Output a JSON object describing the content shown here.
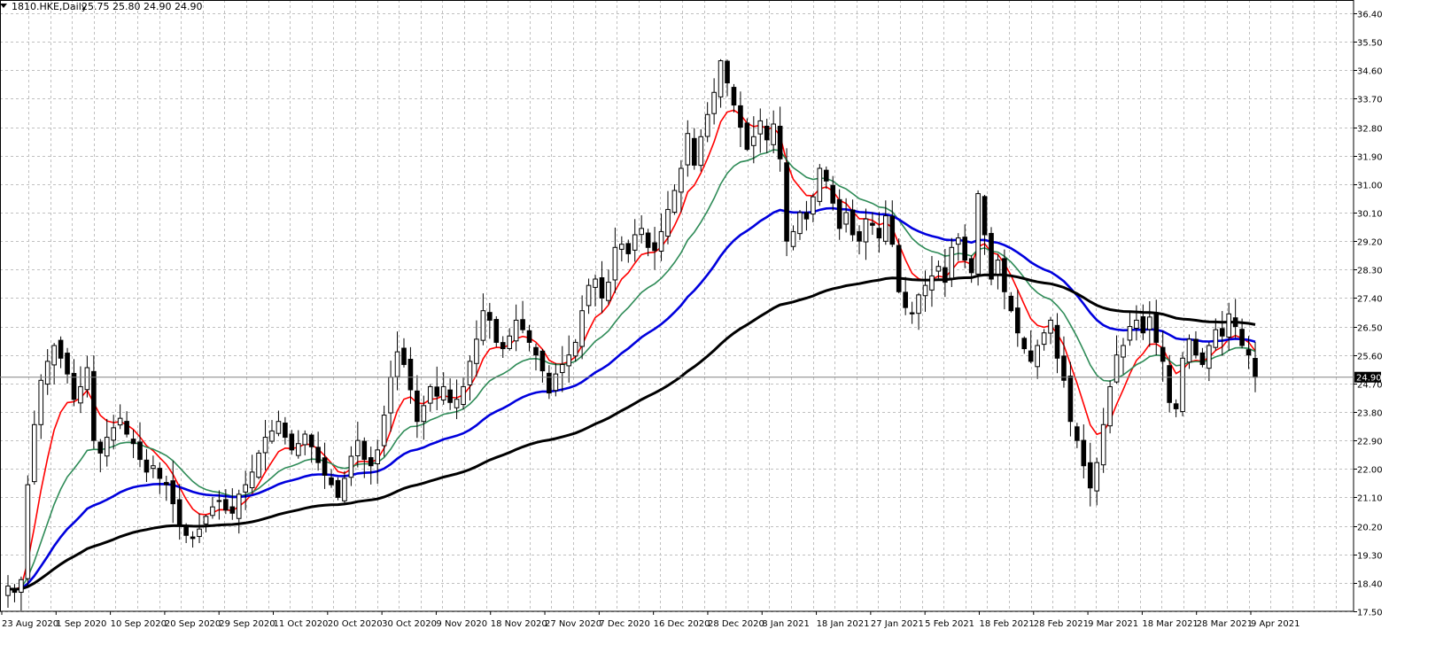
{
  "header": {
    "symbol": "1810.HKE,Daily",
    "ohlc": "25.75 25.80 24.90 24.90"
  },
  "current_price_label": "24.90",
  "colors": {
    "background": "#ffffff",
    "grid": "#c0c0c0",
    "candle": "#000000",
    "ma_red": "#ff0000",
    "ma_green": "#2e8b57",
    "ma_blue": "#0000dd",
    "ma_black": "#000000"
  },
  "chart_data": {
    "type": "candlestick",
    "symbol": "1810.HKE",
    "timeframe": "Daily",
    "y_ticks": [
      "36.40",
      "35.50",
      "34.60",
      "33.70",
      "32.80",
      "31.90",
      "31.00",
      "30.10",
      "29.20",
      "28.30",
      "27.40",
      "26.50",
      "25.60",
      "24.70",
      "23.80",
      "22.90",
      "22.00",
      "21.10",
      "20.20",
      "19.30",
      "18.40",
      "17.50"
    ],
    "ylim": [
      17.5,
      36.4
    ],
    "x_ticks": [
      "23 Aug 2020",
      "1 Sep 2020",
      "10 Sep 2020",
      "20 Sep 2020",
      "29 Sep 2020",
      "11 Oct 2020",
      "20 Oct 2020",
      "30 Oct 2020",
      "9 Nov 2020",
      "18 Nov 2020",
      "27 Nov 2020",
      "7 Dec 2020",
      "16 Dec 2020",
      "28 Dec 2020",
      "8 Jan 2021",
      "18 Jan 2021",
      "27 Jan 2021",
      "5 Feb 2021",
      "18 Feb 2021",
      "28 Feb 2021",
      "9 Mar 2021",
      "18 Mar 2021",
      "28 Mar 2021",
      "9 Apr 2021"
    ],
    "grid": true,
    "closes": [
      18.3,
      18.1,
      18.5,
      21.5,
      23.4,
      24.8,
      25.4,
      25.9,
      25.5,
      25.0,
      24.2,
      24.6,
      25.2,
      22.9,
      22.5,
      23.0,
      23.3,
      23.6,
      23.1,
      22.8,
      22.3,
      21.9,
      22.1,
      21.7,
      21.5,
      20.9,
      20.2,
      19.9,
      19.8,
      20.1,
      20.5,
      20.8,
      21.0,
      20.7,
      20.6,
      21.2,
      21.5,
      21.9,
      22.5,
      23.0,
      23.2,
      23.5,
      23.0,
      22.6,
      22.8,
      23.1,
      22.7,
      22.2,
      21.8,
      21.5,
      21.1,
      21.7,
      22.4,
      22.9,
      22.3,
      22.1,
      22.6,
      23.7,
      24.9,
      25.7,
      25.3,
      24.5,
      23.5,
      24.0,
      24.6,
      24.3,
      24.6,
      24.1,
      24.2,
      24.6,
      25.4,
      26.1,
      27.0,
      26.7,
      26.0,
      25.8,
      26.2,
      26.7,
      26.4,
      26.0,
      25.6,
      25.1,
      24.4,
      25.0,
      25.3,
      25.6,
      26.0,
      27.0,
      27.8,
      28.0,
      27.4,
      27.9,
      29.0,
      29.1,
      28.8,
      29.4,
      29.6,
      29.0,
      28.9,
      29.5,
      30.2,
      30.8,
      31.5,
      32.6,
      31.6,
      32.5,
      33.2,
      33.9,
      34.9,
      34.2,
      33.5,
      32.8,
      32.1,
      32.5,
      33.0,
      32.4,
      32.9,
      31.8,
      29.2,
      29.5,
      30.1,
      29.9,
      30.6,
      31.5,
      31.1,
      30.4,
      29.6,
      30.1,
      29.4,
      29.2,
      29.9,
      29.7,
      29.3,
      30.0,
      29.1,
      27.6,
      27.1,
      26.9,
      27.5,
      27.8,
      28.1,
      28.4,
      27.9,
      29.0,
      29.3,
      28.6,
      28.2,
      30.7,
      29.4,
      28.0,
      28.6,
      27.6,
      27.0,
      26.3,
      25.8,
      25.4,
      25.9,
      26.3,
      26.7,
      25.5,
      24.8,
      23.5,
      22.9,
      22.1,
      21.4,
      22.2,
      23.4,
      24.6,
      25.6,
      25.9,
      26.5,
      26.7,
      26.3,
      26.8,
      26.0,
      25.4,
      24.1,
      23.9,
      25.5,
      26.1,
      25.6,
      25.3,
      25.9,
      26.4,
      26.2,
      26.9,
      26.5,
      25.9,
      25.6,
      24.9
    ]
  }
}
